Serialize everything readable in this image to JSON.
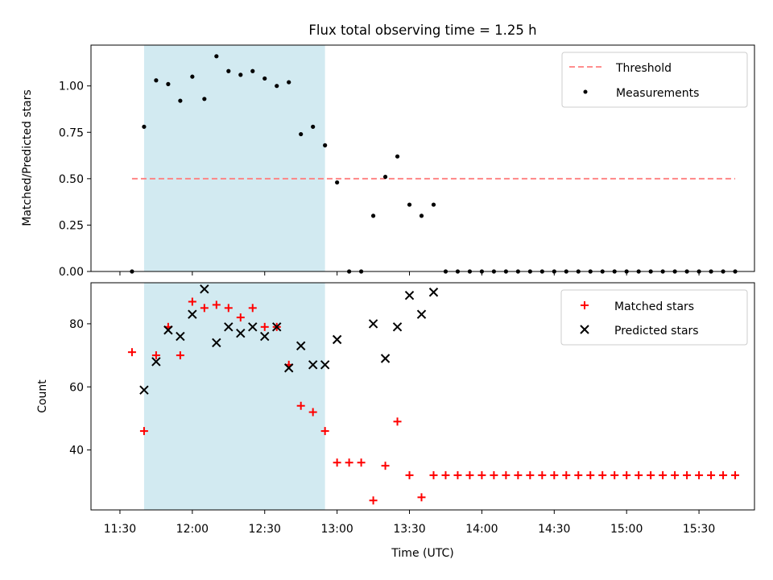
{
  "figure": {
    "title": "Flux total observing time = 1.25 h",
    "xlabel": "Time (UTC)"
  },
  "colors": {
    "threshold": "#ff7f7f",
    "measurement": "#000000",
    "matched": "#ff0000",
    "predicted": "#000000",
    "span_fill": "#add8e6",
    "axis": "#000000"
  },
  "chart_data": [
    {
      "type": "scatter",
      "ylabel": "Matched/Predicted stars",
      "ylim": [
        0,
        1.22
      ],
      "yticks": [
        0.0,
        0.25,
        0.5,
        0.75,
        1.0
      ],
      "ytick_labels": [
        "0.00",
        "0.25",
        "0.50",
        "0.75",
        "1.00"
      ],
      "legend": {
        "placement": "top-right",
        "entries": [
          "Threshold",
          "Measurements"
        ]
      },
      "threshold": {
        "name": "Threshold",
        "value": 0.5,
        "x_range": [
          "11:35",
          "15:45"
        ],
        "style": "dashed"
      },
      "series": [
        {
          "name": "Measurements",
          "marker": "dot",
          "x": [
            "11:35",
            "11:40",
            "11:45",
            "11:50",
            "11:55",
            "12:00",
            "12:05",
            "12:10",
            "12:15",
            "12:20",
            "12:25",
            "12:30",
            "12:35",
            "12:40",
            "12:45",
            "12:50",
            "12:55",
            "13:00",
            "13:05",
            "13:10",
            "13:15",
            "13:20",
            "13:25",
            "13:30",
            "13:35",
            "13:40",
            "13:45",
            "13:50",
            "13:55",
            "14:00",
            "14:05",
            "14:10",
            "14:15",
            "14:20",
            "14:25",
            "14:30",
            "14:35",
            "14:40",
            "14:45",
            "14:50",
            "14:55",
            "15:00",
            "15:05",
            "15:10",
            "15:15",
            "15:20",
            "15:25",
            "15:30",
            "15:35",
            "15:40",
            "15:45"
          ],
          "y": [
            0,
            0.78,
            1.03,
            1.01,
            0.92,
            1.05,
            0.93,
            1.16,
            1.08,
            1.06,
            1.08,
            1.04,
            1.0,
            1.02,
            0.74,
            0.78,
            0.68,
            0.48,
            0,
            0,
            0.3,
            0.51,
            0.62,
            0.36,
            0.3,
            0.36,
            0,
            0,
            0,
            0,
            0,
            0,
            0,
            0,
            0,
            0,
            0,
            0,
            0,
            0,
            0,
            0,
            0,
            0,
            0,
            0,
            0,
            0,
            0,
            0,
            0
          ]
        }
      ]
    },
    {
      "type": "scatter",
      "xlabel": "Time (UTC)",
      "ylabel": "Count",
      "ylim": [
        21,
        93
      ],
      "yticks": [
        40,
        60,
        80
      ],
      "ytick_labels": [
        "40",
        "60",
        "80"
      ],
      "x_ticks": [
        "11:30",
        "12:00",
        "12:30",
        "13:00",
        "13:30",
        "14:00",
        "14:30",
        "15:00",
        "15:30"
      ],
      "legend": {
        "placement": "top-right",
        "entries": [
          "Matched stars",
          "Predicted stars"
        ]
      },
      "series": [
        {
          "name": "Matched stars",
          "marker": "plus",
          "x": [
            "11:35",
            "11:40",
            "11:45",
            "11:50",
            "11:55",
            "12:00",
            "12:05",
            "12:10",
            "12:15",
            "12:20",
            "12:25",
            "12:30",
            "12:35",
            "12:40",
            "12:45",
            "12:50",
            "12:55",
            "13:00",
            "13:05",
            "13:10",
            "13:15",
            "13:20",
            "13:25",
            "13:30",
            "13:35",
            "13:40",
            "13:45",
            "13:50",
            "13:55",
            "14:00",
            "14:05",
            "14:10",
            "14:15",
            "14:20",
            "14:25",
            "14:30",
            "14:35",
            "14:40",
            "14:45",
            "14:50",
            "14:55",
            "15:00",
            "15:05",
            "15:10",
            "15:15",
            "15:20",
            "15:25",
            "15:30",
            "15:35",
            "15:40",
            "15:45"
          ],
          "y": [
            71,
            46,
            70,
            79,
            70,
            87,
            85,
            86,
            85,
            82,
            85,
            79,
            79,
            67,
            54,
            52,
            46,
            36,
            36,
            36,
            24,
            35,
            49,
            32,
            25,
            32,
            32,
            32,
            32,
            32,
            32,
            32,
            32,
            32,
            32,
            32,
            32,
            32,
            32,
            32,
            32,
            32,
            32,
            32,
            32,
            32,
            32,
            32,
            32,
            32,
            32
          ]
        },
        {
          "name": "Predicted stars",
          "marker": "x",
          "x": [
            "11:40",
            "11:45",
            "11:50",
            "11:55",
            "12:00",
            "12:05",
            "12:10",
            "12:15",
            "12:20",
            "12:25",
            "12:30",
            "12:35",
            "12:40",
            "12:45",
            "12:50",
            "12:55",
            "13:00",
            "13:15",
            "13:20",
            "13:25",
            "13:30",
            "13:35",
            "13:40"
          ],
          "y": [
            59,
            68,
            78,
            76,
            83,
            91,
            74,
            79,
            77,
            79,
            76,
            79,
            66,
            73,
            67,
            67,
            75,
            80,
            69,
            79,
            89,
            83,
            90
          ]
        }
      ]
    }
  ],
  "shaded_span": {
    "start": "11:40",
    "end": "12:55"
  }
}
